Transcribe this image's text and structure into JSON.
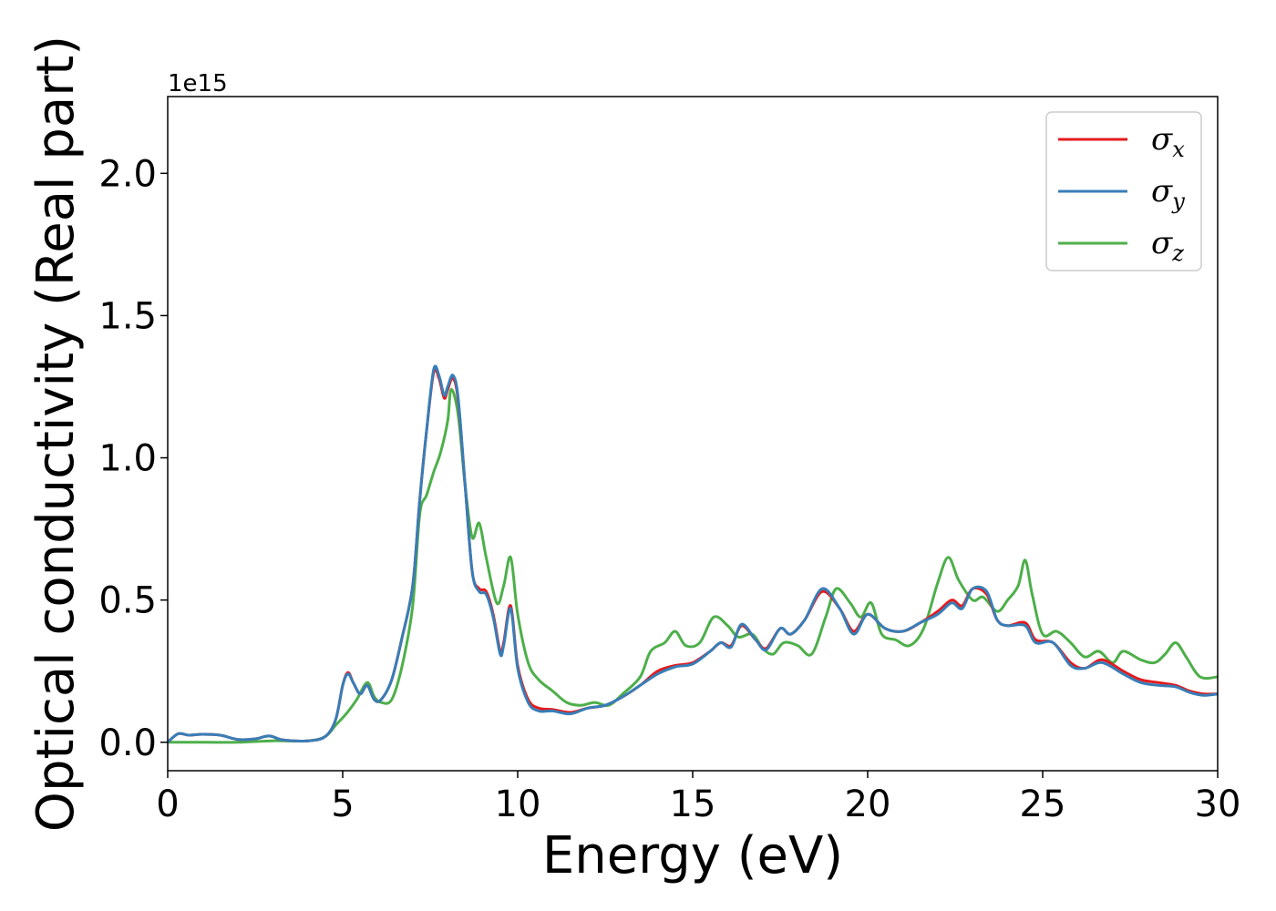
{
  "chart_data": {
    "type": "line",
    "title": "",
    "xlabel": "Energy (eV)",
    "ylabel": "Optical conductivity (Real part)",
    "y_offset_label": "1e15",
    "xlim": [
      0,
      30
    ],
    "ylim": [
      -0.1,
      2.27
    ],
    "xticks": [
      0,
      5,
      10,
      15,
      20,
      25,
      30
    ],
    "yticks": [
      0.0,
      0.5,
      1.0,
      1.5,
      2.0
    ],
    "ytick_labels": [
      "0.0",
      "0.5",
      "1.0",
      "1.5",
      "2.0"
    ],
    "grid": false,
    "legend_position": "top-right",
    "series": [
      {
        "name": "σ",
        "subscript": "x",
        "color": "#e41a1c",
        "points": [
          [
            0,
            0.0
          ],
          [
            0.3,
            0.03
          ],
          [
            0.6,
            0.025
          ],
          [
            1.0,
            0.028
          ],
          [
            1.5,
            0.025
          ],
          [
            2.0,
            0.01
          ],
          [
            2.5,
            0.012
          ],
          [
            2.9,
            0.022
          ],
          [
            3.3,
            0.008
          ],
          [
            4.0,
            0.005
          ],
          [
            4.5,
            0.02
          ],
          [
            4.8,
            0.08
          ],
          [
            5.0,
            0.2
          ],
          [
            5.15,
            0.245
          ],
          [
            5.3,
            0.21
          ],
          [
            5.5,
            0.17
          ],
          [
            5.7,
            0.2
          ],
          [
            5.9,
            0.15
          ],
          [
            6.1,
            0.15
          ],
          [
            6.4,
            0.22
          ],
          [
            6.7,
            0.37
          ],
          [
            7.0,
            0.55
          ],
          [
            7.2,
            0.85
          ],
          [
            7.4,
            1.1
          ],
          [
            7.6,
            1.3
          ],
          [
            7.75,
            1.28
          ],
          [
            7.9,
            1.21
          ],
          [
            8.0,
            1.24
          ],
          [
            8.15,
            1.28
          ],
          [
            8.3,
            1.2
          ],
          [
            8.5,
            0.9
          ],
          [
            8.7,
            0.6
          ],
          [
            8.9,
            0.54
          ],
          [
            9.1,
            0.53
          ],
          [
            9.3,
            0.45
          ],
          [
            9.5,
            0.32
          ],
          [
            9.6,
            0.35
          ],
          [
            9.8,
            0.48
          ],
          [
            10.0,
            0.27
          ],
          [
            10.3,
            0.15
          ],
          [
            10.6,
            0.12
          ],
          [
            11.0,
            0.115
          ],
          [
            11.5,
            0.105
          ],
          [
            12.0,
            0.12
          ],
          [
            12.5,
            0.13
          ],
          [
            13.0,
            0.16
          ],
          [
            13.5,
            0.2
          ],
          [
            14.0,
            0.25
          ],
          [
            14.5,
            0.27
          ],
          [
            15.0,
            0.28
          ],
          [
            15.5,
            0.32
          ],
          [
            15.8,
            0.35
          ],
          [
            16.1,
            0.34
          ],
          [
            16.4,
            0.41
          ],
          [
            16.8,
            0.36
          ],
          [
            17.1,
            0.33
          ],
          [
            17.5,
            0.4
          ],
          [
            17.8,
            0.38
          ],
          [
            18.2,
            0.43
          ],
          [
            18.7,
            0.53
          ],
          [
            19.2,
            0.47
          ],
          [
            19.6,
            0.39
          ],
          [
            20.0,
            0.45
          ],
          [
            20.5,
            0.4
          ],
          [
            21.0,
            0.39
          ],
          [
            21.5,
            0.42
          ],
          [
            22.0,
            0.46
          ],
          [
            22.4,
            0.5
          ],
          [
            22.7,
            0.48
          ],
          [
            23.0,
            0.54
          ],
          [
            23.4,
            0.52
          ],
          [
            23.7,
            0.43
          ],
          [
            24.0,
            0.41
          ],
          [
            24.5,
            0.42
          ],
          [
            24.8,
            0.36
          ],
          [
            25.3,
            0.35
          ],
          [
            25.8,
            0.28
          ],
          [
            26.2,
            0.26
          ],
          [
            26.7,
            0.29
          ],
          [
            27.3,
            0.25
          ],
          [
            27.8,
            0.22
          ],
          [
            28.3,
            0.21
          ],
          [
            28.8,
            0.2
          ],
          [
            29.2,
            0.18
          ],
          [
            29.6,
            0.17
          ],
          [
            30.0,
            0.17
          ]
        ]
      },
      {
        "name": "σ",
        "subscript": "y",
        "color": "#377eb8",
        "points": [
          [
            0,
            0.0
          ],
          [
            0.3,
            0.03
          ],
          [
            0.6,
            0.025
          ],
          [
            1.0,
            0.028
          ],
          [
            1.5,
            0.025
          ],
          [
            2.0,
            0.01
          ],
          [
            2.5,
            0.012
          ],
          [
            2.9,
            0.022
          ],
          [
            3.3,
            0.008
          ],
          [
            4.0,
            0.005
          ],
          [
            4.5,
            0.02
          ],
          [
            4.8,
            0.08
          ],
          [
            5.0,
            0.2
          ],
          [
            5.15,
            0.24
          ],
          [
            5.3,
            0.21
          ],
          [
            5.5,
            0.17
          ],
          [
            5.7,
            0.2
          ],
          [
            5.9,
            0.15
          ],
          [
            6.1,
            0.15
          ],
          [
            6.4,
            0.22
          ],
          [
            6.7,
            0.37
          ],
          [
            7.0,
            0.55
          ],
          [
            7.2,
            0.85
          ],
          [
            7.4,
            1.1
          ],
          [
            7.6,
            1.31
          ],
          [
            7.75,
            1.29
          ],
          [
            7.9,
            1.22
          ],
          [
            8.0,
            1.25
          ],
          [
            8.15,
            1.29
          ],
          [
            8.3,
            1.21
          ],
          [
            8.5,
            0.9
          ],
          [
            8.7,
            0.6
          ],
          [
            8.9,
            0.53
          ],
          [
            9.1,
            0.52
          ],
          [
            9.3,
            0.44
          ],
          [
            9.5,
            0.31
          ],
          [
            9.6,
            0.34
          ],
          [
            9.8,
            0.47
          ],
          [
            10.0,
            0.26
          ],
          [
            10.3,
            0.14
          ],
          [
            10.6,
            0.11
          ],
          [
            11.0,
            0.11
          ],
          [
            11.5,
            0.1
          ],
          [
            12.0,
            0.12
          ],
          [
            12.5,
            0.13
          ],
          [
            13.0,
            0.16
          ],
          [
            13.5,
            0.2
          ],
          [
            14.0,
            0.24
          ],
          [
            14.5,
            0.265
          ],
          [
            15.0,
            0.275
          ],
          [
            15.5,
            0.32
          ],
          [
            15.8,
            0.35
          ],
          [
            16.1,
            0.335
          ],
          [
            16.4,
            0.415
          ],
          [
            16.8,
            0.36
          ],
          [
            17.1,
            0.325
          ],
          [
            17.5,
            0.4
          ],
          [
            17.8,
            0.38
          ],
          [
            18.2,
            0.43
          ],
          [
            18.7,
            0.54
          ],
          [
            19.2,
            0.47
          ],
          [
            19.6,
            0.38
          ],
          [
            20.0,
            0.45
          ],
          [
            20.5,
            0.4
          ],
          [
            21.0,
            0.39
          ],
          [
            21.5,
            0.42
          ],
          [
            22.0,
            0.45
          ],
          [
            22.4,
            0.49
          ],
          [
            22.7,
            0.47
          ],
          [
            23.0,
            0.54
          ],
          [
            23.4,
            0.53
          ],
          [
            23.7,
            0.43
          ],
          [
            24.0,
            0.41
          ],
          [
            24.5,
            0.41
          ],
          [
            24.8,
            0.35
          ],
          [
            25.3,
            0.35
          ],
          [
            25.8,
            0.27
          ],
          [
            26.2,
            0.26
          ],
          [
            26.7,
            0.28
          ],
          [
            27.3,
            0.24
          ],
          [
            27.8,
            0.21
          ],
          [
            28.3,
            0.2
          ],
          [
            28.8,
            0.195
          ],
          [
            29.2,
            0.175
          ],
          [
            29.6,
            0.165
          ],
          [
            30.0,
            0.17
          ]
        ]
      },
      {
        "name": "σ",
        "subscript": "z",
        "color": "#4daf4a",
        "points": [
          [
            0,
            0.0
          ],
          [
            1.0,
            0.0
          ],
          [
            2.0,
            0.0
          ],
          [
            3.0,
            0.005
          ],
          [
            4.0,
            0.005
          ],
          [
            4.5,
            0.02
          ],
          [
            4.8,
            0.06
          ],
          [
            5.1,
            0.1
          ],
          [
            5.4,
            0.15
          ],
          [
            5.7,
            0.21
          ],
          [
            5.9,
            0.16
          ],
          [
            6.1,
            0.14
          ],
          [
            6.4,
            0.15
          ],
          [
            6.7,
            0.27
          ],
          [
            7.0,
            0.48
          ],
          [
            7.2,
            0.8
          ],
          [
            7.4,
            0.87
          ],
          [
            7.6,
            0.95
          ],
          [
            7.8,
            1.02
          ],
          [
            8.0,
            1.13
          ],
          [
            8.1,
            1.24
          ],
          [
            8.3,
            1.15
          ],
          [
            8.5,
            0.9
          ],
          [
            8.7,
            0.72
          ],
          [
            8.9,
            0.77
          ],
          [
            9.1,
            0.65
          ],
          [
            9.4,
            0.49
          ],
          [
            9.6,
            0.55
          ],
          [
            9.8,
            0.65
          ],
          [
            10.0,
            0.45
          ],
          [
            10.3,
            0.28
          ],
          [
            10.6,
            0.22
          ],
          [
            11.0,
            0.18
          ],
          [
            11.4,
            0.14
          ],
          [
            11.8,
            0.13
          ],
          [
            12.2,
            0.14
          ],
          [
            12.6,
            0.13
          ],
          [
            13.0,
            0.17
          ],
          [
            13.5,
            0.23
          ],
          [
            13.8,
            0.32
          ],
          [
            14.2,
            0.35
          ],
          [
            14.5,
            0.39
          ],
          [
            14.8,
            0.34
          ],
          [
            15.2,
            0.35
          ],
          [
            15.6,
            0.44
          ],
          [
            16.0,
            0.41
          ],
          [
            16.3,
            0.37
          ],
          [
            16.7,
            0.38
          ],
          [
            17.0,
            0.33
          ],
          [
            17.3,
            0.31
          ],
          [
            17.6,
            0.35
          ],
          [
            18.0,
            0.34
          ],
          [
            18.4,
            0.31
          ],
          [
            18.8,
            0.44
          ],
          [
            19.1,
            0.54
          ],
          [
            19.5,
            0.49
          ],
          [
            19.8,
            0.44
          ],
          [
            20.1,
            0.49
          ],
          [
            20.4,
            0.38
          ],
          [
            20.8,
            0.36
          ],
          [
            21.2,
            0.34
          ],
          [
            21.6,
            0.4
          ],
          [
            22.0,
            0.56
          ],
          [
            22.3,
            0.65
          ],
          [
            22.6,
            0.57
          ],
          [
            23.0,
            0.5
          ],
          [
            23.3,
            0.51
          ],
          [
            23.7,
            0.46
          ],
          [
            24.0,
            0.5
          ],
          [
            24.3,
            0.55
          ],
          [
            24.5,
            0.64
          ],
          [
            24.7,
            0.52
          ],
          [
            25.0,
            0.38
          ],
          [
            25.4,
            0.39
          ],
          [
            25.8,
            0.35
          ],
          [
            26.2,
            0.3
          ],
          [
            26.6,
            0.32
          ],
          [
            27.0,
            0.28
          ],
          [
            27.3,
            0.32
          ],
          [
            27.8,
            0.29
          ],
          [
            28.2,
            0.28
          ],
          [
            28.5,
            0.31
          ],
          [
            28.8,
            0.35
          ],
          [
            29.1,
            0.3
          ],
          [
            29.5,
            0.23
          ],
          [
            30.0,
            0.23
          ]
        ]
      }
    ]
  }
}
